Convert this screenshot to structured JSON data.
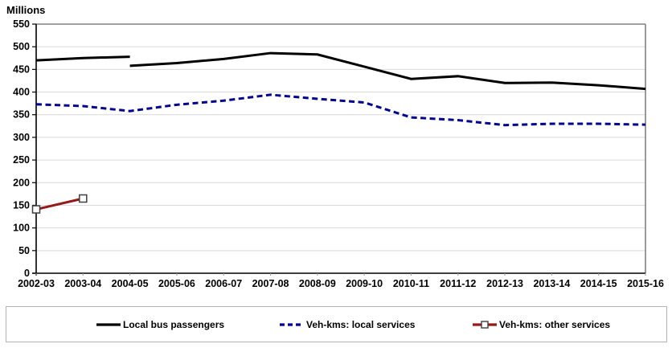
{
  "chart_data": {
    "type": "line",
    "title": "Millions",
    "categories": [
      "2002-03",
      "2003-04",
      "2004-05",
      "2005-06",
      "2006-07",
      "2007-08",
      "2008-09",
      "2009-10",
      "2010-11",
      "2011-12",
      "2012-13",
      "2013-14",
      "2014-15",
      "2015-16"
    ],
    "y_axis": {
      "min": 0,
      "max": 550,
      "step": 50
    },
    "grid": "horizontal",
    "legend_position": "bottom-boxed",
    "series": [
      {
        "name": "Local bus passengers",
        "color": "#000000",
        "style": "solid",
        "note": "line break at 2004-05",
        "segments": [
          {
            "start_index": 0,
            "values": [
              470,
              475,
              478
            ]
          },
          {
            "start_index": 2,
            "values": [
              458,
              464,
              473,
              486,
              483,
              456,
              429,
              435,
              420,
              421,
              415,
              407
            ]
          }
        ]
      },
      {
        "name": "Veh-kms: local services",
        "color": "#00008B",
        "style": "dashed",
        "segments": [
          {
            "start_index": 0,
            "values": [
              373,
              369,
              358,
              372,
              381,
              394,
              385,
              377,
              344,
              338,
              327,
              330,
              330,
              328
            ]
          }
        ]
      },
      {
        "name": "Veh-kms: other services",
        "color": "#941A1A",
        "style": "solid",
        "marker": {
          "shape": "square",
          "fill": "#FFFFFF",
          "stroke": "#3f3f3f"
        },
        "segments": [
          {
            "start_index": 0,
            "values": [
              141,
              165
            ]
          }
        ]
      }
    ],
    "plot_frame": {
      "inner_grid_color": "#d9d9d9",
      "outer_border_color": "#808080",
      "axis_color": "#000000"
    }
  }
}
